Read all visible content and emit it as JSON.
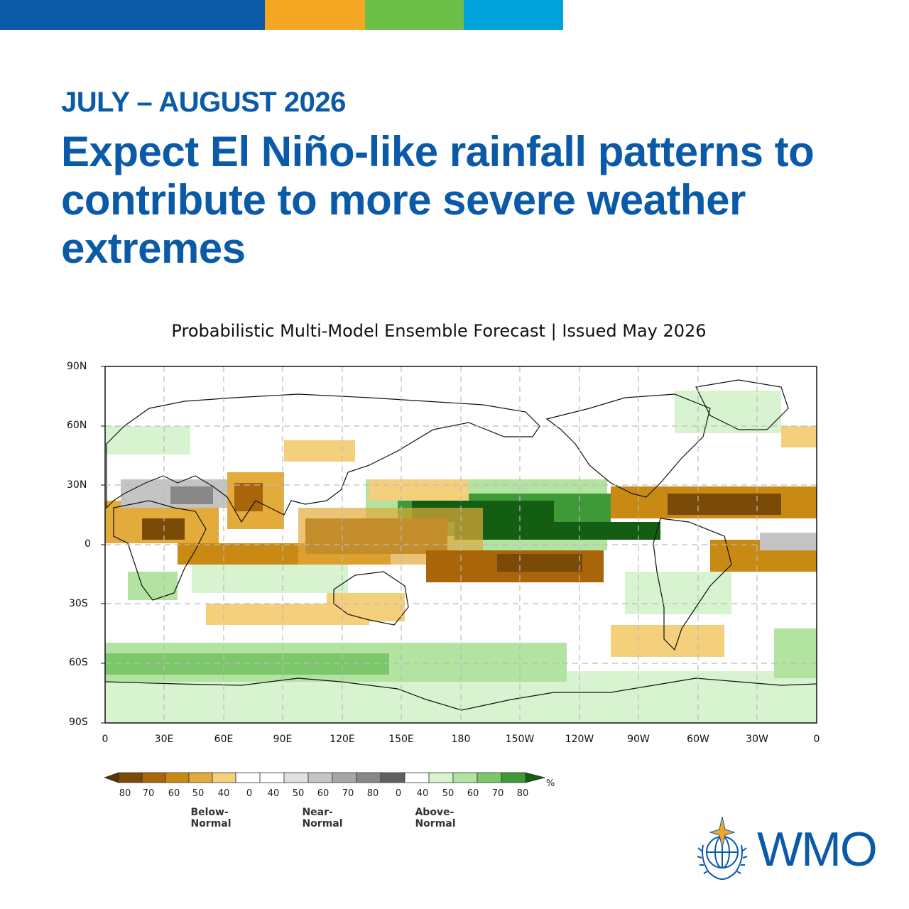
{
  "header": {
    "period": "JULY – AUGUST 2026",
    "headline": "Expect El Niño-like rainfall patterns to contribute to more severe weather extremes"
  },
  "colors": {
    "bar": [
      "#0b5aa8",
      "#f5a623",
      "#6cc04a",
      "#00a3d9"
    ],
    "dry": [
      "#7a4a06",
      "#a8650a",
      "#c98a14",
      "#e3aa3c",
      "#f4cf7c"
    ],
    "normal": [
      "#e0e0e0",
      "#c4c4c4",
      "#a6a6a6",
      "#888888",
      "#606060"
    ],
    "wet": [
      "#d8f3cf",
      "#b2e3a0",
      "#7cc76a",
      "#3e9a37",
      "#145e14"
    ],
    "brand": "#0b5aa8"
  },
  "map": {
    "title": "Probabilistic Multi-Model Ensemble Forecast | Issued May 2026",
    "lat_labels": [
      "90N",
      "60N",
      "30N",
      "0",
      "30S",
      "60S",
      "90S"
    ],
    "lon_labels": [
      "0",
      "30E",
      "60E",
      "90E",
      "120E",
      "150E",
      "180",
      "150W",
      "120W",
      "90W",
      "60W",
      "30W",
      "0"
    ]
  },
  "legend": {
    "unit": "%",
    "tick_labels": [
      "80",
      "70",
      "60",
      "50",
      "40",
      "0",
      "40",
      "50",
      "60",
      "70",
      "80",
      "0",
      "40",
      "50",
      "60",
      "70",
      "80"
    ],
    "categories": [
      "Below-Normal",
      "Near-Normal",
      "Above-Normal"
    ]
  },
  "logo": {
    "text": "WMO"
  }
}
